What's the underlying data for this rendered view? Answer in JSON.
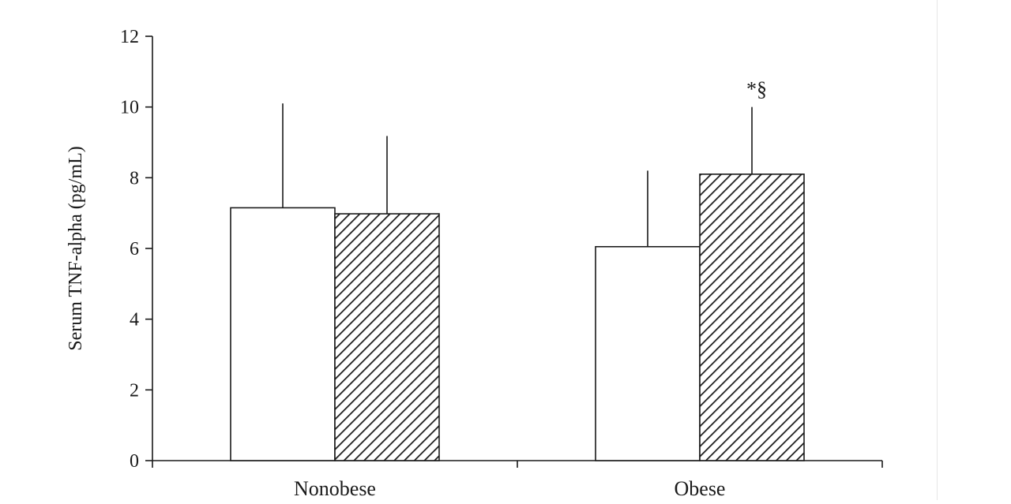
{
  "chart_data": {
    "type": "bar",
    "title": "",
    "xlabel": "",
    "ylabel": "Serum TNF-alpha (pg/mL)",
    "ylim": [
      0,
      12
    ],
    "yticks": [
      0,
      2,
      4,
      6,
      8,
      10,
      12
    ],
    "grid": false,
    "legend": "none",
    "categories": [
      "Nonobese",
      "Obese"
    ],
    "series": [
      {
        "fill": "plain",
        "color": "#ffffff",
        "values": [
          7.15,
          6.05
        ],
        "errors": [
          2.95,
          2.15
        ]
      },
      {
        "fill": "hatched",
        "color": "#1a1a1a",
        "values": [
          6.98,
          8.1
        ],
        "errors": [
          2.2,
          1.9
        ]
      }
    ],
    "annotations": [
      {
        "text": "*§",
        "category": "Obese",
        "series": 1
      }
    ]
  }
}
